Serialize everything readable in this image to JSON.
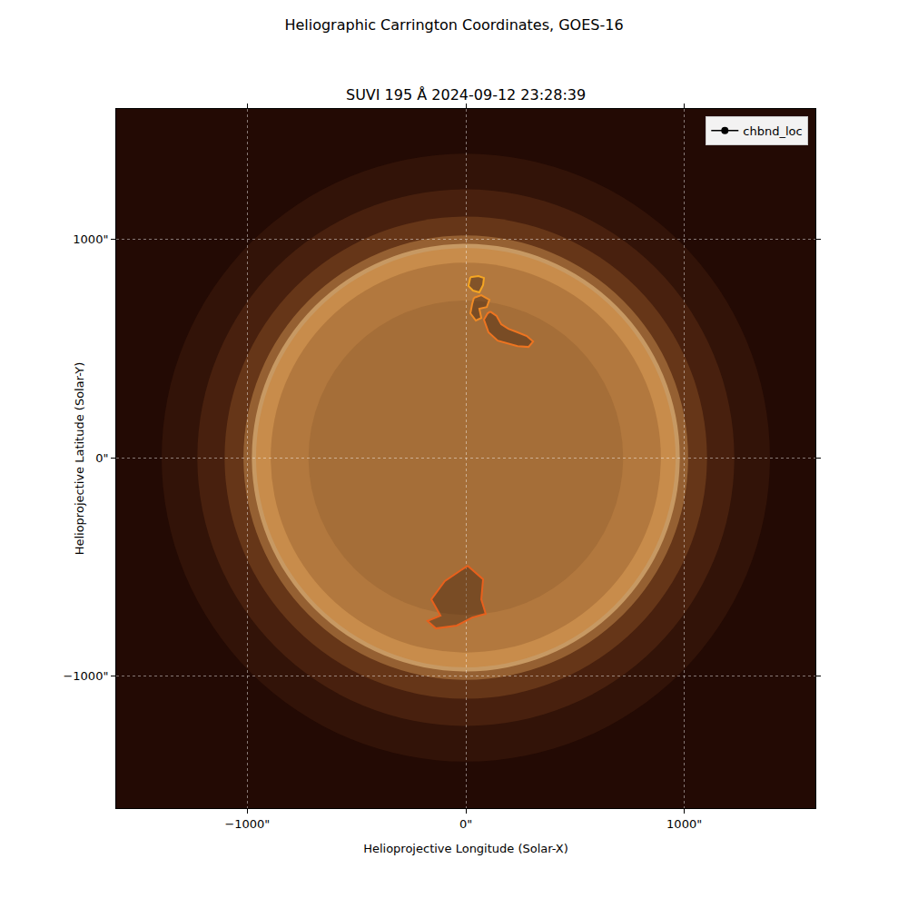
{
  "chart_data": {
    "type": "image",
    "title": "Heliographic Carrington Coordinates, GOES-16",
    "subtitle": "SUVI 195 Å 2024-09-12 23:28:39",
    "x_label": "Helioprojective Longitude (Solar-X)",
    "y_label": "Helioprojective Latitude (Solar-Y)",
    "xlim": [
      -1600,
      1600
    ],
    "ylim": [
      -1605,
      1597
    ],
    "xticks": [
      {
        "value": -1000,
        "label": "−1000\""
      },
      {
        "value": 0,
        "label": "0\""
      },
      {
        "value": 1000,
        "label": "1000\""
      }
    ],
    "yticks": [
      {
        "value": -1000,
        "label": "−1000\""
      },
      {
        "value": 0,
        "label": "0\""
      },
      {
        "value": 1000,
        "label": "1000\""
      }
    ],
    "grid": true,
    "legend": "upper right",
    "disk": {
      "radius": 960
    },
    "series": [
      {
        "name": "chbnd_loc",
        "color": "#000000",
        "marker": "circle",
        "line_style": "solid"
      }
    ],
    "contours": [
      {
        "color": "#f5a623",
        "x": [
          21,
          58,
          83,
          79,
          62,
          33,
          12,
          21
        ],
        "y": [
          827,
          832,
          823,
          790,
          757,
          765,
          786,
          827
        ]
      },
      {
        "color": "#f08a24",
        "x": [
          37,
          71,
          108,
          96,
          62,
          71,
          46,
          21,
          29,
          37
        ],
        "y": [
          732,
          744,
          723,
          690,
          682,
          640,
          628,
          661,
          703,
          732
        ]
      },
      {
        "color": "#ee7420",
        "x": [
          112,
          141,
          162,
          195,
          237,
          279,
          308,
          287,
          237,
          195,
          146,
          104,
          83,
          100,
          112
        ],
        "y": [
          669,
          649,
          611,
          590,
          574,
          557,
          532,
          507,
          511,
          524,
          536,
          574,
          632,
          661,
          669
        ]
      },
      {
        "color": "#e8601c",
        "x": [
          8,
          79,
          71,
          91,
          29,
          -42,
          -137,
          -175,
          -116,
          -158,
          -96,
          8
        ],
        "y": [
          -495,
          -557,
          -649,
          -715,
          -732,
          -769,
          -782,
          -748,
          -723,
          -649,
          -565,
          -495
        ]
      }
    ]
  }
}
